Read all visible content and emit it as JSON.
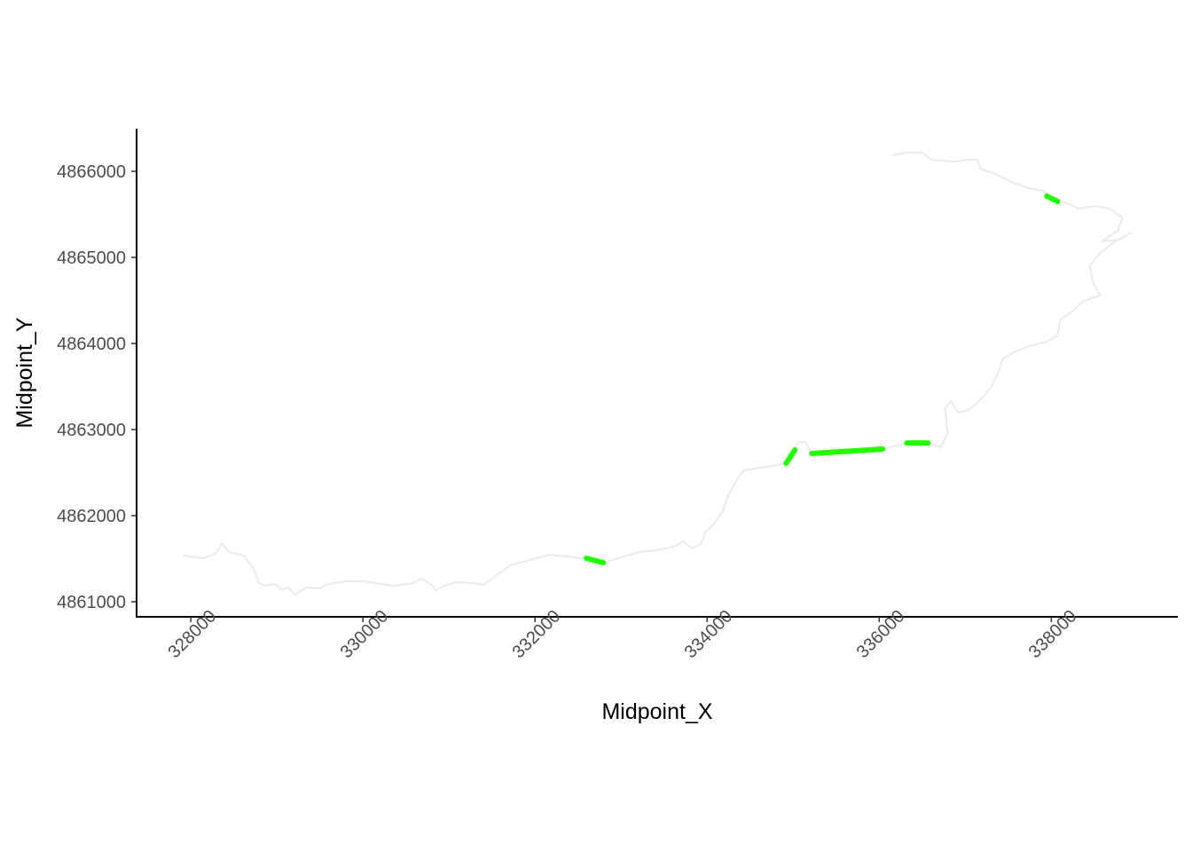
{
  "chart_data": {
    "type": "line",
    "x_label": "Midpoint_X",
    "y_label": "Midpoint_Y",
    "xlim": [
      327370,
      339470
    ],
    "ylim": [
      4860825,
      4866495
    ],
    "xticks": [
      328000,
      330000,
      332000,
      334000,
      336000,
      338000
    ],
    "yticks": [
      4861000,
      4862000,
      4863000,
      4864000,
      4865000,
      4866000
    ],
    "series": [
      {
        "color": "#ebebeb",
        "width": 2,
        "x": [
          327918,
          328155,
          328309,
          328361,
          328443,
          328619,
          328722,
          328794,
          328876,
          328979,
          329062,
          329134,
          329206,
          329340,
          329495,
          329598,
          329804,
          330010,
          330216,
          330371,
          330577,
          330680,
          330784,
          330856,
          330938,
          331093,
          331299,
          331402,
          331557,
          331711,
          331969,
          332175,
          332381,
          332588,
          332794,
          333000,
          333206,
          333412,
          333619,
          333722,
          333825,
          333928,
          333979,
          334082,
          334186,
          334237,
          334320,
          334423,
          334546,
          334753,
          334907,
          335010,
          335062,
          335144,
          335216,
          335577,
          336041,
          336299,
          336557,
          336711,
          336794,
          336763,
          336835,
          336918,
          337041,
          337124,
          337227,
          337309,
          337381,
          337433,
          337536,
          337742,
          337948,
          338072,
          338103,
          338258,
          338361,
          338567,
          338485,
          338443,
          338567,
          338773,
          338928,
          338794,
          338588,
          338773,
          338825,
          338670,
          338515,
          338309,
          338155,
          337897,
          337742,
          337536,
          337330,
          337175,
          337144,
          337021,
          336866,
          336608,
          336505,
          336299,
          336165
        ],
        "values": [
          4861536,
          4861505,
          4861577,
          4861680,
          4861577,
          4861536,
          4861392,
          4861216,
          4861186,
          4861206,
          4861144,
          4861165,
          4861082,
          4861165,
          4861155,
          4861206,
          4861237,
          4861237,
          4861206,
          4861186,
          4861216,
          4861268,
          4861206,
          4861134,
          4861186,
          4861227,
          4861216,
          4861196,
          4861309,
          4861423,
          4861495,
          4861546,
          4861526,
          4861495,
          4861454,
          4861515,
          4861577,
          4861598,
          4861639,
          4861701,
          4861619,
          4861670,
          4861804,
          4861907,
          4862062,
          4862216,
          4862371,
          4862526,
          4862546,
          4862577,
          4862608,
          4862784,
          4862856,
          4862856,
          4862722,
          4862753,
          4862773,
          4862835,
          4862856,
          4862794,
          4862959,
          4863247,
          4863330,
          4863196,
          4863227,
          4863299,
          4863402,
          4863505,
          4863660,
          4863814,
          4863887,
          4863969,
          4864021,
          4864093,
          4864278,
          4864381,
          4864485,
          4864557,
          4864711,
          4864897,
          4865051,
          4865206,
          4865289,
          4865206,
          4865186,
          4865309,
          4865464,
          4865567,
          4865598,
          4865567,
          4865639,
          4865773,
          4865804,
          4865876,
          4865979,
          4866031,
          4866134,
          4866134,
          4866113,
          4866134,
          4866216,
          4866216,
          4866186
        ]
      },
      {
        "color": "#22ff00",
        "width": 6,
        "x": [
          332598,
          332794
        ],
        "values": [
          4861505,
          4861454
        ]
      },
      {
        "color": "#22ff00",
        "width": 6,
        "x": [
          334918,
          335021
        ],
        "values": [
          4862608,
          4862763
        ]
      },
      {
        "color": "#22ff00",
        "width": 6,
        "x": [
          335216,
          336041
        ],
        "values": [
          4862722,
          4862773
        ]
      },
      {
        "color": "#22ff00",
        "width": 6,
        "x": [
          336320,
          336567
        ],
        "values": [
          4862845,
          4862845
        ]
      },
      {
        "color": "#22ff00",
        "width": 6,
        "x": [
          337948,
          338072
        ],
        "values": [
          4865711,
          4865649
        ]
      }
    ]
  }
}
